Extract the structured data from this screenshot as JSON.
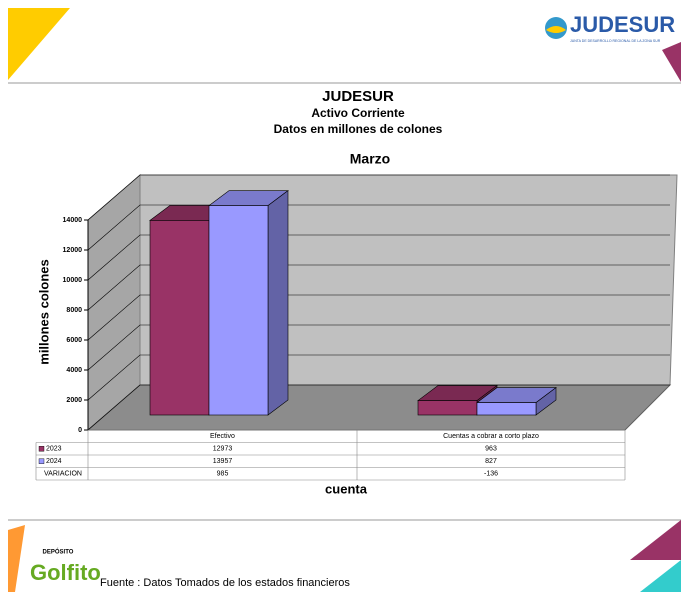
{
  "branding": {
    "logo": "JUDESUR",
    "logo_subtitle": "JUNTA DE DESARROLLO REGIONAL DE LA ZONA SUR",
    "footer_logo_top": "DEPÓSITO",
    "footer_logo": "Golfito"
  },
  "chart_data": {
    "type": "bar",
    "title": "JUDESUR",
    "subtitle": [
      "Activo Corriente",
      "Datos en millones de colones"
    ],
    "period": "Marzo",
    "categories": [
      "Efectivo",
      "Cuentas a cobrar a corto plazo"
    ],
    "series": [
      {
        "name": "2023",
        "color": "#993366",
        "values": [
          12973,
          963
        ]
      },
      {
        "name": "2024",
        "color": "#9999ff",
        "values": [
          13957,
          827
        ]
      }
    ],
    "variation": {
      "name": "VARIACION",
      "values": [
        985,
        -136
      ]
    },
    "ylim": [
      0,
      14000
    ],
    "yticks": [
      0,
      2000,
      4000,
      6000,
      8000,
      10000,
      12000,
      14000
    ],
    "grid": true,
    "ylabel": "millones colones",
    "xlabel": "cuenta",
    "source": "Fuente : Datos Tomados de los estados financieros"
  }
}
